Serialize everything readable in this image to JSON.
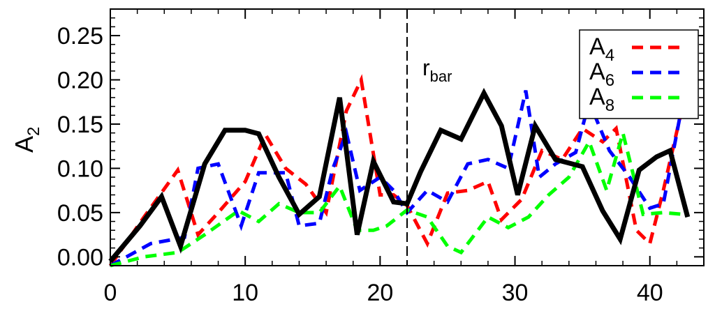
{
  "chart_data": {
    "type": "line",
    "title": "",
    "xlabel": "",
    "ylabel": {
      "base": "A",
      "sub": "2"
    },
    "xlim": [
      0,
      44
    ],
    "ylim": [
      -0.01,
      0.28
    ],
    "xticks": [
      0,
      10,
      20,
      30,
      40
    ],
    "xtick_labels": [
      "0",
      "10",
      "20",
      "30",
      "40"
    ],
    "yticks": [
      0.0,
      0.05,
      0.1,
      0.15,
      0.2,
      0.25
    ],
    "ytick_labels": [
      "0.00",
      "0.05",
      "0.10",
      "0.15",
      "0.20",
      "0.25"
    ],
    "grid": false,
    "legend_position": "top-right",
    "annotation": {
      "base": "r",
      "sub": "bar",
      "x": 22
    },
    "series": [
      {
        "name": "A2",
        "legend": false,
        "color": "#000000",
        "style": "solid",
        "x": [
          0,
          2.2,
          3.8,
          5.2,
          7.0,
          8.5,
          10.0,
          11.0,
          12.5,
          14.0,
          15.5,
          17.0,
          18.3,
          19.5,
          21.0,
          22.0,
          23.0,
          24.5,
          26.0,
          27.7,
          29.0,
          30.2,
          31.5,
          33.0,
          35.0,
          36.5,
          37.8,
          39.2,
          40.5,
          41.5,
          42.8
        ],
        "y": [
          -0.005,
          0.035,
          0.068,
          0.012,
          0.105,
          0.143,
          0.143,
          0.139,
          0.09,
          0.048,
          0.068,
          0.18,
          0.025,
          0.108,
          0.062,
          0.06,
          0.096,
          0.143,
          0.133,
          0.185,
          0.148,
          0.07,
          0.148,
          0.11,
          0.102,
          0.052,
          0.02,
          0.098,
          0.113,
          0.12,
          0.045
        ]
      },
      {
        "name": "A4",
        "legend": {
          "base": "A",
          "sub": "4"
        },
        "color": "#ff0000",
        "style": "dashed",
        "x": [
          0,
          2.5,
          5.0,
          6.5,
          8.0,
          10.0,
          11.5,
          13.0,
          14.5,
          16.0,
          17.5,
          18.6,
          20.0,
          21.0,
          22.0,
          23.5,
          25.0,
          26.5,
          28.0,
          29.0,
          30.5,
          32.0,
          33.5,
          35.0,
          36.5,
          37.5,
          39.0,
          40.0,
          41.0,
          42.5
        ],
        "y": [
          -0.01,
          0.045,
          0.098,
          0.025,
          0.05,
          0.085,
          0.138,
          0.1,
          0.082,
          0.05,
          0.165,
          0.2,
          0.07,
          0.07,
          0.058,
          0.015,
          0.072,
          0.075,
          0.085,
          0.042,
          0.065,
          0.12,
          0.11,
          0.145,
          0.13,
          0.145,
          0.03,
          0.015,
          0.075,
          0.175
        ]
      },
      {
        "name": "A6",
        "legend": {
          "base": "A",
          "sub": "6"
        },
        "color": "#0000ff",
        "style": "dashed",
        "x": [
          0,
          3.0,
          5.5,
          6.5,
          8.0,
          9.7,
          11.0,
          13.0,
          14.0,
          15.5,
          16.5,
          17.5,
          18.5,
          20.0,
          21.0,
          22.0,
          23.5,
          25.0,
          26.5,
          28.0,
          29.5,
          30.8,
          31.8,
          33.0,
          34.5,
          35.5,
          37.0,
          38.5,
          40.0,
          41.0,
          42.5
        ],
        "y": [
          -0.01,
          0.015,
          0.022,
          0.1,
          0.105,
          0.035,
          0.095,
          0.095,
          0.035,
          0.038,
          0.1,
          0.14,
          0.075,
          0.09,
          0.075,
          0.05,
          0.075,
          0.062,
          0.105,
          0.11,
          0.1,
          0.188,
          0.09,
          0.105,
          0.118,
          0.175,
          0.12,
          0.09,
          0.055,
          0.06,
          0.18
        ]
      },
      {
        "name": "A8",
        "legend": {
          "base": "A",
          "sub": "8"
        },
        "color": "#00ff00",
        "style": "dashed",
        "x": [
          0,
          2.5,
          5.0,
          7.0,
          9.5,
          11.0,
          12.5,
          14.0,
          15.5,
          17.0,
          18.3,
          19.5,
          20.5,
          22.0,
          23.5,
          25.0,
          26.0,
          28.0,
          29.5,
          31.0,
          32.5,
          34.0,
          35.5,
          36.8,
          38.0,
          39.5,
          41.0,
          42.5
        ],
        "y": [
          -0.01,
          0.0,
          0.005,
          0.025,
          0.052,
          0.04,
          0.06,
          0.05,
          0.05,
          0.08,
          0.03,
          0.03,
          0.035,
          0.053,
          0.045,
          0.012,
          0.005,
          0.045,
          0.033,
          0.045,
          0.07,
          0.09,
          0.13,
          0.075,
          0.14,
          0.048,
          0.05,
          0.048
        ]
      }
    ]
  }
}
